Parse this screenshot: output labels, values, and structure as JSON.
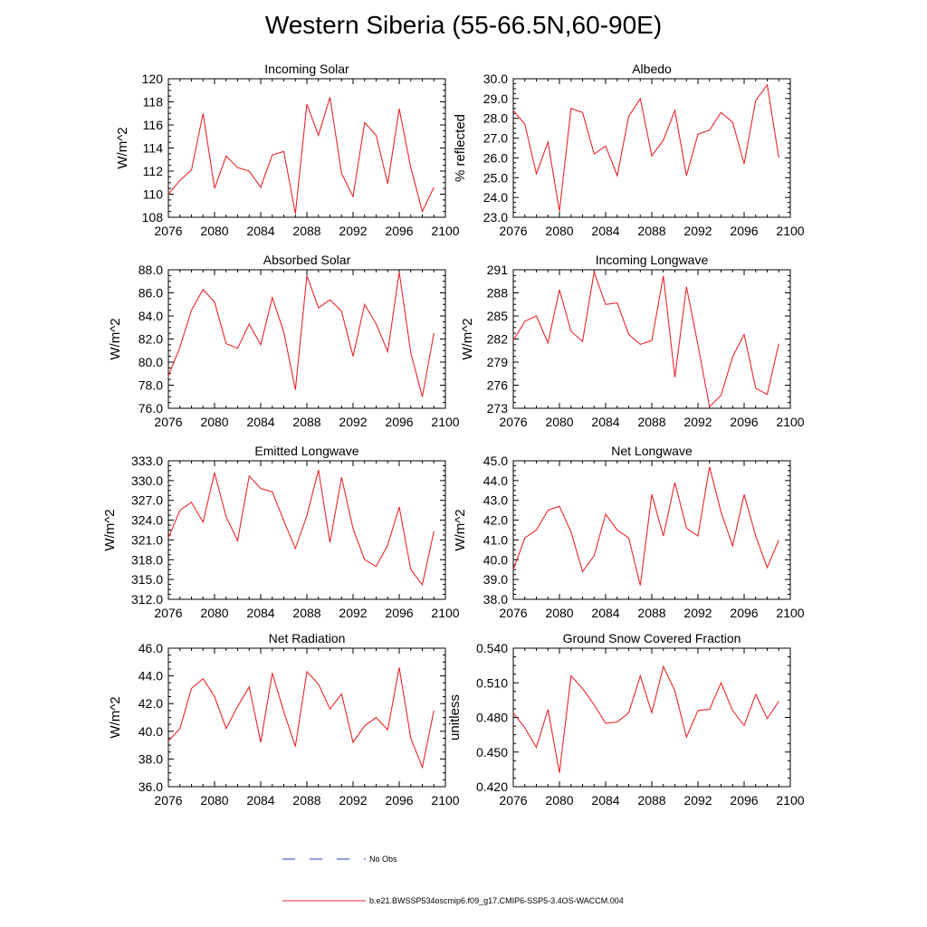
{
  "title": "Western Siberia (55-66.5N,60-90E)",
  "legend": [
    {
      "label": "No Obs",
      "color": "#1f3fd1",
      "dashed": true
    },
    {
      "label": "b.e21.BWSSP534oscmip6.f09_g17.CMIP6-SSP5-3.4OS-WACCM.004",
      "color": "#e8262b",
      "dashed": false
    }
  ],
  "chart_data": [
    {
      "type": "line",
      "title": "Incoming Solar",
      "ylabel": "W/m^2",
      "xlabel": "",
      "xlim": [
        2076,
        2100
      ],
      "ylim": [
        108,
        120
      ],
      "xticks": [
        2076,
        2080,
        2084,
        2088,
        2092,
        2096,
        2100
      ],
      "yticks": [
        "108",
        "110",
        "112",
        "114",
        "116",
        "118",
        "120"
      ],
      "series": [
        {
          "color": "#e8262b",
          "x": [
            2076,
            2077,
            2078,
            2079,
            2080,
            2081,
            2082,
            2083,
            2084,
            2085,
            2086,
            2087,
            2088,
            2089,
            2090,
            2091,
            2092,
            2093,
            2094,
            2095,
            2096,
            2097,
            2098,
            2099
          ],
          "values": [
            110.0,
            111.2,
            112.1,
            117.0,
            110.5,
            113.3,
            112.3,
            112.0,
            110.6,
            113.4,
            113.7,
            108.3,
            117.8,
            115.1,
            118.4,
            111.8,
            109.8,
            116.2,
            115.1,
            110.9,
            117.4,
            112.3,
            108.5,
            110.6
          ]
        }
      ]
    },
    {
      "type": "line",
      "title": "Albedo",
      "ylabel": "% reflected",
      "xlabel": "",
      "xlim": [
        2076,
        2100
      ],
      "ylim": [
        23.0,
        30.0
      ],
      "xticks": [
        2076,
        2080,
        2084,
        2088,
        2092,
        2096,
        2100
      ],
      "yticks": [
        "23.0",
        "24.0",
        "25.0",
        "26.0",
        "27.0",
        "28.0",
        "29.0",
        "30.0"
      ],
      "series": [
        {
          "color": "#e8262b",
          "x": [
            2076,
            2077,
            2078,
            2079,
            2080,
            2081,
            2082,
            2083,
            2084,
            2085,
            2086,
            2087,
            2088,
            2089,
            2090,
            2091,
            2092,
            2093,
            2094,
            2095,
            2096,
            2097,
            2098,
            2099
          ],
          "values": [
            28.4,
            27.7,
            25.2,
            26.8,
            23.3,
            28.5,
            28.3,
            26.2,
            26.6,
            25.1,
            28.1,
            29.0,
            26.1,
            26.9,
            28.4,
            25.1,
            27.2,
            27.4,
            28.3,
            27.8,
            25.7,
            28.9,
            29.7,
            26.0
          ]
        }
      ]
    },
    {
      "type": "line",
      "title": "Absorbed Solar",
      "ylabel": "W/m^2",
      "xlabel": "",
      "xlim": [
        2076,
        2100
      ],
      "ylim": [
        76.0,
        88.0
      ],
      "xticks": [
        2076,
        2080,
        2084,
        2088,
        2092,
        2096,
        2100
      ],
      "yticks": [
        "76.0",
        "78.0",
        "80.0",
        "82.0",
        "84.0",
        "86.0",
        "88.0"
      ],
      "series": [
        {
          "color": "#e8262b",
          "x": [
            2076,
            2077,
            2078,
            2079,
            2080,
            2081,
            2082,
            2083,
            2084,
            2085,
            2086,
            2087,
            2088,
            2089,
            2090,
            2091,
            2092,
            2093,
            2094,
            2095,
            2096,
            2097,
            2098,
            2099
          ],
          "values": [
            78.8,
            81.3,
            84.5,
            86.3,
            85.2,
            81.6,
            81.2,
            83.3,
            81.5,
            85.6,
            82.6,
            77.6,
            87.5,
            84.7,
            85.4,
            84.4,
            80.5,
            85.0,
            83.3,
            80.9,
            87.8,
            80.8,
            77.0,
            82.5
          ]
        }
      ]
    },
    {
      "type": "line",
      "title": "Incoming Longwave",
      "ylabel": "W/m^2",
      "xlabel": "",
      "xlim": [
        2076,
        2100
      ],
      "ylim": [
        273,
        291
      ],
      "xticks": [
        2076,
        2080,
        2084,
        2088,
        2092,
        2096,
        2100
      ],
      "yticks": [
        "273",
        "276",
        "279",
        "282",
        "285",
        "288",
        "291"
      ],
      "series": [
        {
          "color": "#e8262b",
          "x": [
            2076,
            2077,
            2078,
            2079,
            2080,
            2081,
            2082,
            2083,
            2084,
            2085,
            2086,
            2087,
            2088,
            2089,
            2090,
            2091,
            2092,
            2093,
            2094,
            2095,
            2096,
            2097,
            2098,
            2099
          ],
          "values": [
            281.8,
            284.3,
            285.0,
            281.5,
            288.4,
            283.0,
            281.7,
            290.7,
            286.5,
            286.7,
            282.6,
            281.3,
            281.8,
            290.2,
            277.0,
            288.8,
            281.2,
            273.2,
            274.7,
            279.7,
            282.6,
            275.6,
            274.8,
            281.4
          ]
        }
      ]
    },
    {
      "type": "line",
      "title": "Emitted Longwave",
      "ylabel": "W/m^2",
      "xlabel": "",
      "xlim": [
        2076,
        2100
      ],
      "ylim": [
        312.0,
        333.0
      ],
      "xticks": [
        2076,
        2080,
        2084,
        2088,
        2092,
        2096,
        2100
      ],
      "yticks": [
        "312.0",
        "315.0",
        "318.0",
        "321.0",
        "324.0",
        "327.0",
        "330.0",
        "333.0"
      ],
      "series": [
        {
          "color": "#e8262b",
          "x": [
            2076,
            2077,
            2078,
            2079,
            2080,
            2081,
            2082,
            2083,
            2084,
            2085,
            2086,
            2087,
            2088,
            2089,
            2090,
            2091,
            2092,
            2093,
            2094,
            2095,
            2096,
            2097,
            2098,
            2099
          ],
          "values": [
            321.3,
            325.5,
            326.7,
            323.7,
            331.2,
            324.5,
            320.9,
            330.7,
            328.8,
            328.3,
            323.9,
            319.7,
            324.7,
            331.6,
            320.6,
            330.5,
            322.7,
            318.0,
            317.0,
            320.2,
            326.0,
            316.5,
            314.2,
            322.3
          ]
        }
      ]
    },
    {
      "type": "line",
      "title": "Net Longwave",
      "ylabel": "W/m^2",
      "xlabel": "",
      "xlim": [
        2076,
        2100
      ],
      "ylim": [
        38.0,
        45.0
      ],
      "xticks": [
        2076,
        2080,
        2084,
        2088,
        2092,
        2096,
        2100
      ],
      "yticks": [
        "38.0",
        "39.0",
        "40.0",
        "41.0",
        "42.0",
        "43.0",
        "44.0",
        "45.0"
      ],
      "series": [
        {
          "color": "#e8262b",
          "x": [
            2076,
            2077,
            2078,
            2079,
            2080,
            2081,
            2082,
            2083,
            2084,
            2085,
            2086,
            2087,
            2088,
            2089,
            2090,
            2091,
            2092,
            2093,
            2094,
            2095,
            2096,
            2097,
            2098,
            2099
          ],
          "values": [
            39.5,
            41.1,
            41.5,
            42.5,
            42.7,
            41.4,
            39.4,
            40.2,
            42.3,
            41.5,
            41.1,
            38.7,
            43.3,
            41.2,
            43.9,
            41.6,
            41.2,
            44.7,
            42.4,
            40.7,
            43.3,
            41.2,
            39.6,
            41.0
          ]
        }
      ]
    },
    {
      "type": "line",
      "title": "Net Radiation",
      "ylabel": "W/m^2",
      "xlabel": "",
      "xlim": [
        2076,
        2100
      ],
      "ylim": [
        36.0,
        46.0
      ],
      "xticks": [
        2076,
        2080,
        2084,
        2088,
        2092,
        2096,
        2100
      ],
      "yticks": [
        "36.0",
        "38.0",
        "40.0",
        "42.0",
        "44.0",
        "46.0"
      ],
      "series": [
        {
          "color": "#e8262b",
          "x": [
            2076,
            2077,
            2078,
            2079,
            2080,
            2081,
            2082,
            2083,
            2084,
            2085,
            2086,
            2087,
            2088,
            2089,
            2090,
            2091,
            2092,
            2093,
            2094,
            2095,
            2096,
            2097,
            2098,
            2099
          ],
          "values": [
            39.3,
            40.2,
            43.1,
            43.8,
            42.5,
            40.2,
            41.8,
            43.2,
            39.2,
            44.2,
            41.4,
            38.9,
            44.3,
            43.4,
            41.6,
            42.7,
            39.2,
            40.4,
            41.0,
            40.1,
            44.6,
            39.5,
            37.4,
            41.5
          ]
        }
      ]
    },
    {
      "type": "line",
      "title": "Ground Snow Covered Fraction",
      "ylabel": "unitless",
      "xlabel": "",
      "xlim": [
        2076,
        2100
      ],
      "ylim": [
        0.42,
        0.54
      ],
      "xticks": [
        2076,
        2080,
        2084,
        2088,
        2092,
        2096,
        2100
      ],
      "yticks": [
        "0.420",
        "0.450",
        "0.480",
        "0.510",
        "0.540"
      ],
      "series": [
        {
          "color": "#e8262b",
          "x": [
            2076,
            2077,
            2078,
            2079,
            2080,
            2081,
            2082,
            2083,
            2084,
            2085,
            2086,
            2087,
            2088,
            2089,
            2090,
            2091,
            2092,
            2093,
            2094,
            2095,
            2096,
            2097,
            2098,
            2099
          ],
          "values": [
            0.484,
            0.471,
            0.454,
            0.487,
            0.432,
            0.516,
            0.505,
            0.491,
            0.475,
            0.476,
            0.484,
            0.516,
            0.484,
            0.524,
            0.503,
            0.463,
            0.486,
            0.487,
            0.51,
            0.486,
            0.473,
            0.5,
            0.479,
            0.494
          ]
        }
      ]
    }
  ]
}
